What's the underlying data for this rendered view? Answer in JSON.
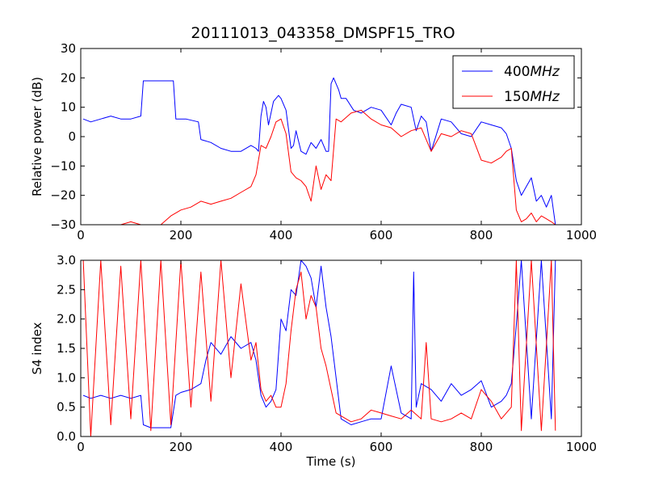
{
  "page_title": "20111013_043358_DMSPF15_TRO",
  "colors": {
    "s400": "#0000ff",
    "s150": "#ff0000",
    "axis": "#000000",
    "background": "#ffffff"
  },
  "chart_data": [
    {
      "type": "line",
      "ylabel": "Relative power (dB)",
      "xlim": [
        0,
        1000
      ],
      "ylim": [
        -30,
        30
      ],
      "xticks": [
        0,
        200,
        400,
        600,
        800,
        1000
      ],
      "yticks": [
        -30,
        -20,
        -10,
        0,
        10,
        20,
        30
      ],
      "legend_position": "top-right",
      "series": [
        {
          "name": "400MHz",
          "color": "#0000ff",
          "x": [
            5,
            20,
            40,
            60,
            80,
            100,
            120,
            125,
            135,
            150,
            170,
            185,
            190,
            210,
            235,
            240,
            260,
            280,
            300,
            320,
            340,
            350,
            355,
            360,
            365,
            370,
            375,
            385,
            395,
            400,
            410,
            420,
            425,
            430,
            440,
            450,
            460,
            470,
            480,
            490,
            495,
            500,
            505,
            515,
            520,
            530,
            545,
            560,
            580,
            600,
            620,
            630,
            640,
            660,
            670,
            680,
            690,
            700,
            720,
            740,
            760,
            780,
            800,
            820,
            840,
            850,
            860,
            870,
            880,
            890,
            900,
            910,
            920,
            930,
            940,
            948
          ],
          "y": [
            6,
            5,
            6,
            7,
            6,
            6,
            7,
            19,
            19,
            19,
            19,
            19,
            6,
            6,
            5,
            -1,
            -2,
            -4,
            -5,
            -5,
            -3,
            -4,
            -5,
            7,
            12,
            10,
            4,
            12,
            14,
            13,
            9,
            -4,
            -3,
            2,
            -5,
            -6,
            -2,
            -4,
            -1,
            -5,
            -5,
            18,
            20,
            16,
            13,
            13,
            9,
            8,
            10,
            9,
            4,
            8,
            11,
            10,
            2,
            7,
            5,
            -5,
            6,
            5,
            1,
            0,
            5,
            4,
            3,
            1,
            -4,
            -15,
            -20,
            -17,
            -14,
            -22,
            -20,
            -24,
            -20,
            -30
          ]
        },
        {
          "name": "150MHz",
          "color": "#ff0000",
          "x": [
            5,
            20,
            40,
            60,
            80,
            100,
            120,
            140,
            160,
            180,
            200,
            220,
            240,
            260,
            280,
            300,
            320,
            340,
            350,
            360,
            370,
            380,
            390,
            400,
            410,
            420,
            430,
            440,
            450,
            460,
            470,
            480,
            490,
            500,
            510,
            520,
            540,
            560,
            580,
            600,
            620,
            640,
            660,
            680,
            700,
            720,
            740,
            760,
            780,
            800,
            820,
            840,
            850,
            860,
            870,
            880,
            890,
            900,
            910,
            920,
            930,
            940,
            948
          ],
          "y": [
            -30,
            -30,
            -30,
            -30,
            -30,
            -29,
            -30,
            -30,
            -30,
            -27,
            -25,
            -24,
            -22,
            -23,
            -22,
            -21,
            -19,
            -17,
            -13,
            -3,
            -4,
            0,
            5,
            6,
            1,
            -12,
            -14,
            -15,
            -17,
            -22,
            -10,
            -18,
            -13,
            -15,
            6,
            5,
            8,
            9,
            6,
            4,
            3,
            0,
            2,
            3,
            -5,
            1,
            0,
            2,
            1,
            -8,
            -9,
            -7,
            -5,
            -4,
            -25,
            -29,
            -28,
            -26,
            -29,
            -27,
            -28,
            -29,
            -30
          ]
        }
      ]
    },
    {
      "type": "line",
      "xlabel": "Time (s)",
      "ylabel": "S4 index",
      "xlim": [
        0,
        1000
      ],
      "ylim": [
        0.0,
        3.0
      ],
      "xticks": [
        0,
        200,
        400,
        600,
        800,
        1000
      ],
      "yticks": [
        0.0,
        0.5,
        1.0,
        1.5,
        2.0,
        2.5,
        3.0
      ],
      "series": [
        {
          "color": "#0000ff",
          "x": [
            5,
            20,
            40,
            60,
            80,
            100,
            120,
            125,
            140,
            160,
            180,
            190,
            200,
            220,
            240,
            250,
            260,
            280,
            300,
            320,
            340,
            350,
            360,
            370,
            380,
            390,
            400,
            410,
            420,
            430,
            440,
            450,
            460,
            470,
            480,
            490,
            500,
            510,
            520,
            540,
            560,
            580,
            600,
            620,
            640,
            660,
            665,
            670,
            680,
            700,
            720,
            740,
            760,
            780,
            800,
            820,
            840,
            850,
            860,
            870,
            880,
            900,
            920,
            940,
            948
          ],
          "y": [
            0.7,
            0.65,
            0.7,
            0.65,
            0.7,
            0.65,
            0.7,
            0.2,
            0.15,
            0.15,
            0.15,
            0.7,
            0.75,
            0.8,
            0.9,
            1.3,
            1.6,
            1.4,
            1.7,
            1.5,
            1.6,
            1.3,
            0.7,
            0.5,
            0.6,
            0.8,
            2.0,
            1.8,
            2.5,
            2.4,
            3.0,
            2.9,
            2.7,
            2.2,
            2.9,
            2.2,
            1.7,
            1.0,
            0.3,
            0.2,
            0.25,
            0.3,
            0.3,
            1.2,
            0.4,
            0.3,
            2.8,
            0.5,
            0.9,
            0.8,
            0.6,
            0.9,
            0.7,
            0.8,
            0.95,
            0.5,
            0.6,
            0.7,
            0.9,
            1.9,
            3.0,
            0.3,
            3.0,
            0.3,
            3.0
          ]
        },
        {
          "color": "#ff0000",
          "x": [
            5,
            20,
            40,
            60,
            80,
            100,
            120,
            140,
            160,
            180,
            200,
            220,
            240,
            260,
            280,
            300,
            320,
            340,
            350,
            360,
            370,
            380,
            390,
            400,
            410,
            420,
            430,
            440,
            450,
            460,
            470,
            480,
            490,
            500,
            510,
            520,
            540,
            560,
            580,
            600,
            620,
            640,
            660,
            680,
            690,
            700,
            720,
            740,
            760,
            780,
            800,
            820,
            840,
            860,
            870,
            880,
            900,
            920,
            940,
            948
          ],
          "y": [
            3.0,
            0.0,
            3.0,
            0.2,
            2.9,
            0.3,
            3.0,
            0.1,
            3.0,
            0.2,
            3.0,
            0.5,
            2.8,
            0.6,
            3.0,
            1.0,
            2.6,
            1.3,
            1.6,
            0.8,
            0.6,
            0.7,
            0.5,
            0.5,
            0.9,
            1.8,
            2.5,
            2.8,
            2.0,
            2.4,
            2.2,
            1.5,
            1.2,
            0.8,
            0.4,
            0.35,
            0.25,
            0.3,
            0.45,
            0.4,
            0.35,
            0.3,
            0.45,
            0.3,
            1.6,
            0.3,
            0.25,
            0.3,
            0.4,
            0.3,
            0.8,
            0.6,
            0.3,
            0.5,
            3.0,
            0.1,
            3.0,
            0.1,
            3.0,
            0.1
          ]
        }
      ]
    }
  ]
}
